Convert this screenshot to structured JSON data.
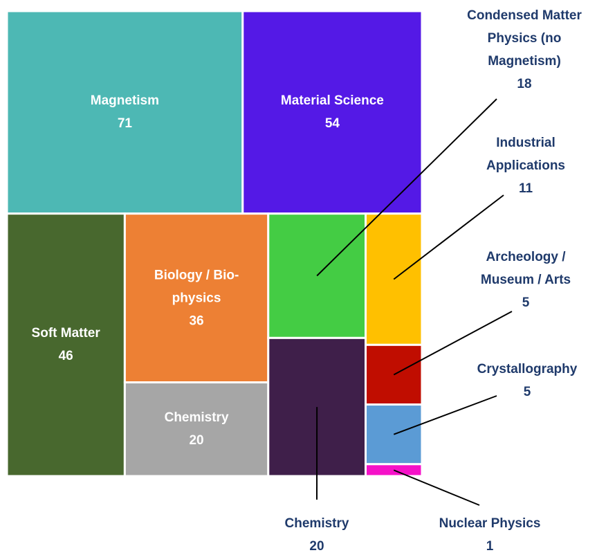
{
  "chart_data": {
    "type": "treemap",
    "categories": [
      "Magnetism",
      "Material Science",
      "Soft Matter",
      "Biology / Bio-physics",
      "Chemistry",
      "Condensed Matter Physics (no Magnetism)",
      "Chemistry",
      "Industrial Applications",
      "Archeology / Museum / Arts",
      "Crystallography",
      "Nuclear Physics"
    ],
    "values": [
      71,
      54,
      46,
      36,
      20,
      18,
      20,
      11,
      5,
      5,
      1
    ],
    "colors": [
      "#4db8b4",
      "#5419e6",
      "#48682e",
      "#ed8034",
      "#a6a6a6",
      "#44cc44",
      "#3f1f4a",
      "#ffc000",
      "#c00d00",
      "#5b9bd5",
      "#f511c8"
    ]
  }
}
